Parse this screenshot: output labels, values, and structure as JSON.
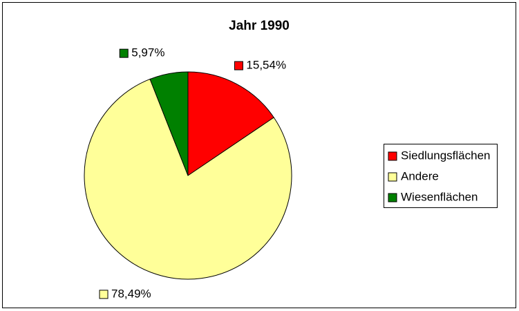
{
  "chart_data": {
    "type": "pie",
    "title": "Jahr 1990",
    "categories": [
      "Siedlungsflächen",
      "Andere",
      "Wiesenflächen"
    ],
    "values": [
      15.54,
      78.49,
      5.97
    ],
    "value_labels": [
      "15,54%",
      "78,49%",
      "5,97%"
    ],
    "colors": [
      "#ff0000",
      "#ffff99",
      "#008000"
    ],
    "legend": "right"
  }
}
